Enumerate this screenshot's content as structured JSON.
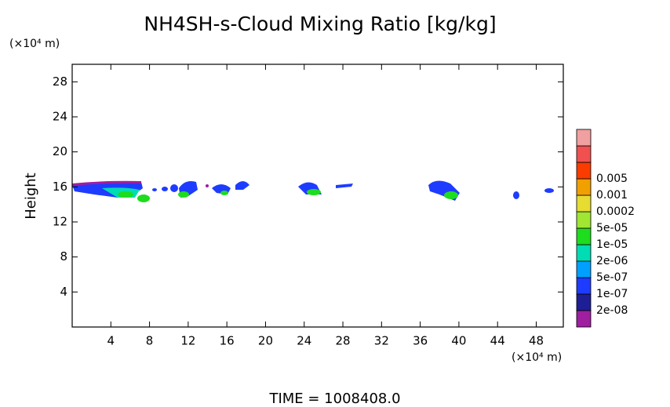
{
  "chart_data": {
    "type": "contour",
    "title": "NH4SH-s-Cloud Mixing Ratio [kg/kg]",
    "y_unit": "(×10⁴ m)",
    "x_unit": "(×10⁴ m)",
    "ylabel": "Height",
    "footer": "TIME = 1008408.0",
    "xlim": [
      0,
      50.8
    ],
    "xticks": [
      4,
      8,
      12,
      16,
      20,
      24,
      28,
      32,
      36,
      40,
      44,
      48
    ],
    "ylim": [
      0,
      30
    ],
    "yticks": [
      4,
      8,
      12,
      16,
      20,
      24,
      28
    ],
    "levels": [
      {
        "value": 2e-08,
        "label": "2e-08"
      },
      {
        "value": 1e-07,
        "label": "1e-07"
      },
      {
        "value": 5e-07,
        "label": "5e-07"
      },
      {
        "value": 2e-06,
        "label": "2e-06"
      },
      {
        "value": 1e-05,
        "label": "1e-05"
      },
      {
        "value": 5e-05,
        "label": "5e-05"
      },
      0.0002,
      0.001,
      0.005
    ],
    "colors": [
      "#a01ea0",
      "#1e1e96",
      "#1e3cff",
      "#00a0ff",
      "#00dcb4",
      "#1edc1e",
      "#a0e632",
      "#e6dc32",
      "#f0a000",
      "#fa3c00",
      "#f05050",
      "#f0a0a0"
    ]
  }
}
